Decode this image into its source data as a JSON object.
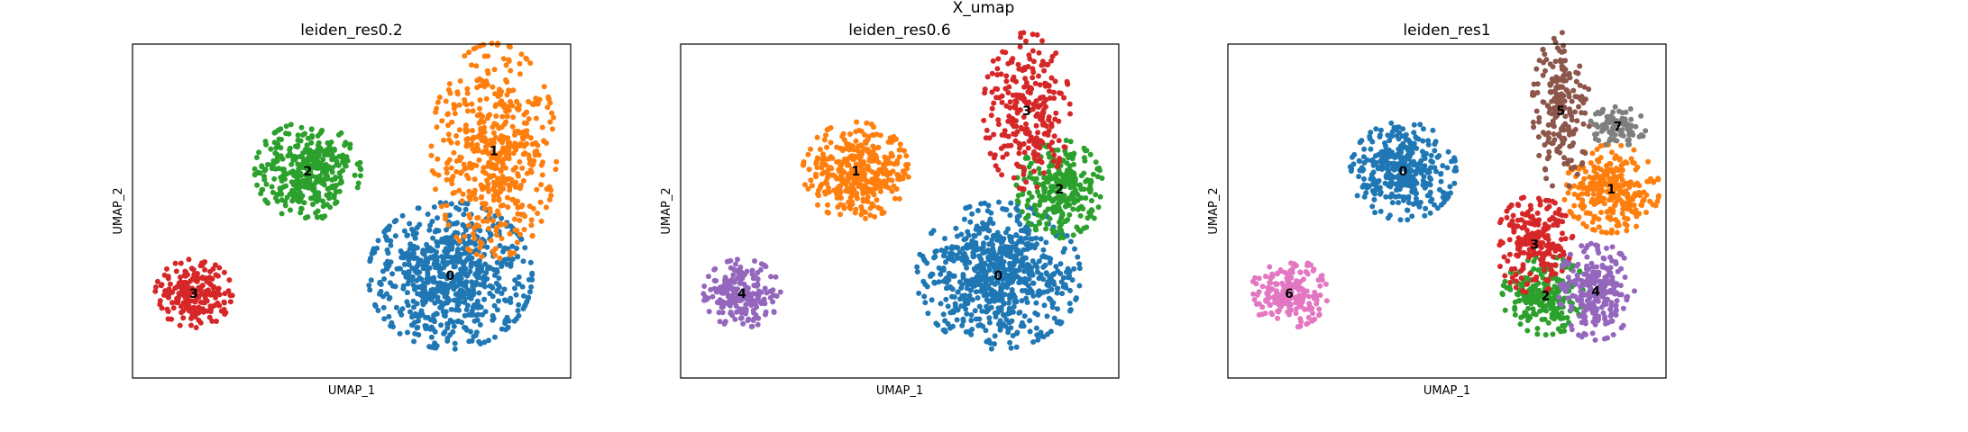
{
  "figure": {
    "title": "X_umap"
  },
  "colors": {
    "palette": [
      "#1f77b4",
      "#ff7f0e",
      "#2ca02c",
      "#d62728",
      "#9467bd",
      "#8c564b",
      "#e377c2",
      "#7f7f7f"
    ]
  },
  "chart_data": [
    {
      "type": "scatter",
      "title": "leiden_res0.2",
      "xlabel": "UMAP_1",
      "ylabel": "UMAP_2",
      "xlim": [
        -5,
        15
      ],
      "ylim": [
        -4,
        11
      ],
      "grid": false,
      "legend": "none (cluster labels drawn on data)",
      "clusters": [
        {
          "label": "0",
          "color": "#1f77b4",
          "count": 720,
          "center": [
            9.5,
            0.6
          ],
          "spread": [
            1.7,
            1.5
          ]
        },
        {
          "label": "1",
          "color": "#ff7f0e",
          "count": 520,
          "center": [
            11.5,
            6.2
          ],
          "spread": [
            1.3,
            2.2
          ]
        },
        {
          "label": "2",
          "color": "#2ca02c",
          "count": 360,
          "center": [
            3.0,
            5.3
          ],
          "spread": [
            1.1,
            1.0
          ]
        },
        {
          "label": "3",
          "color": "#d62728",
          "count": 200,
          "center": [
            -2.2,
            -0.2
          ],
          "spread": [
            0.8,
            0.7
          ]
        }
      ]
    },
    {
      "type": "scatter",
      "title": "leiden_res0.6",
      "xlabel": "UMAP_1",
      "ylabel": "UMAP_2",
      "xlim": [
        -5,
        15
      ],
      "ylim": [
        -4,
        11
      ],
      "grid": false,
      "legend": "none (cluster labels drawn on data)",
      "clusters": [
        {
          "label": "0",
          "color": "#1f77b4",
          "count": 720,
          "center": [
            9.5,
            0.6
          ],
          "spread": [
            1.7,
            1.5
          ]
        },
        {
          "label": "1",
          "color": "#ff7f0e",
          "count": 360,
          "center": [
            3.0,
            5.3
          ],
          "spread": [
            1.1,
            1.0
          ]
        },
        {
          "label": "2",
          "color": "#2ca02c",
          "count": 280,
          "center": [
            12.3,
            4.5
          ],
          "spread": [
            0.9,
            1.0
          ]
        },
        {
          "label": "3",
          "color": "#d62728",
          "count": 260,
          "center": [
            10.8,
            8.0
          ],
          "spread": [
            0.9,
            1.6
          ]
        },
        {
          "label": "4",
          "color": "#9467bd",
          "count": 200,
          "center": [
            -2.2,
            -0.2
          ],
          "spread": [
            0.8,
            0.7
          ]
        }
      ]
    },
    {
      "type": "scatter",
      "title": "leiden_res1",
      "xlabel": "UMAP_1",
      "ylabel": "UMAP_2",
      "xlim": [
        -5,
        15
      ],
      "ylim": [
        -4,
        11
      ],
      "grid": false,
      "legend": "none (cluster labels drawn on data)",
      "clusters": [
        {
          "label": "0",
          "color": "#1f77b4",
          "count": 360,
          "center": [
            3.0,
            5.3
          ],
          "spread": [
            1.1,
            1.0
          ]
        },
        {
          "label": "1",
          "color": "#ff7f0e",
          "count": 300,
          "center": [
            12.5,
            4.5
          ],
          "spread": [
            1.0,
            0.9
          ]
        },
        {
          "label": "2",
          "color": "#2ca02c",
          "count": 240,
          "center": [
            9.5,
            -0.3
          ],
          "spread": [
            0.9,
            0.8
          ]
        },
        {
          "label": "3",
          "color": "#d62728",
          "count": 220,
          "center": [
            9.0,
            2.0
          ],
          "spread": [
            0.8,
            1.0
          ]
        },
        {
          "label": "4",
          "color": "#9467bd",
          "count": 240,
          "center": [
            11.8,
            -0.1
          ],
          "spread": [
            0.8,
            1.0
          ]
        },
        {
          "label": "5",
          "color": "#8c564b",
          "count": 210,
          "center": [
            10.2,
            8.0
          ],
          "spread": [
            0.6,
            1.6
          ]
        },
        {
          "label": "6",
          "color": "#e377c2",
          "count": 200,
          "center": [
            -2.2,
            -0.2
          ],
          "spread": [
            0.8,
            0.7
          ]
        },
        {
          "label": "7",
          "color": "#7f7f7f",
          "count": 90,
          "center": [
            12.8,
            7.3
          ],
          "spread": [
            0.6,
            0.4
          ]
        }
      ]
    }
  ]
}
